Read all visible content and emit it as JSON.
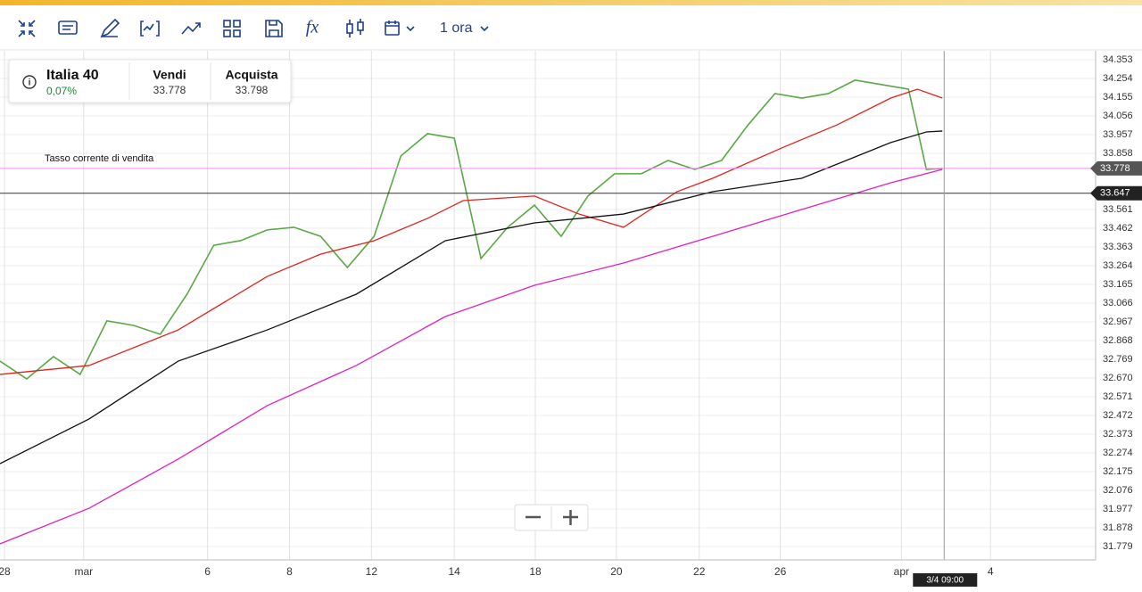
{
  "toolbar": {
    "timeframe": "1 ora"
  },
  "instrument": {
    "name": "Italia 40",
    "change": "0,07%",
    "sell_label": "Vendi",
    "sell": "33.778",
    "buy_label": "Acquista",
    "buy": "33.798"
  },
  "chart_data": {
    "type": "line",
    "xlim": [
      0,
      123
    ],
    "xticks": [
      {
        "value": 0.5,
        "label": "28"
      },
      {
        "value": 9.4,
        "label": "mar"
      },
      {
        "value": 23.3,
        "label": "6"
      },
      {
        "value": 32.5,
        "label": "8"
      },
      {
        "value": 41.7,
        "label": "12"
      },
      {
        "value": 51.0,
        "label": "14"
      },
      {
        "value": 60.1,
        "label": "18"
      },
      {
        "value": 69.2,
        "label": "20"
      },
      {
        "value": 78.5,
        "label": "22"
      },
      {
        "value": 87.6,
        "label": "26"
      },
      {
        "value": 101.2,
        "label": "apr"
      },
      {
        "value": 111.2,
        "label": "4"
      }
    ],
    "ylim": [
      31.708,
      34.4
    ],
    "yticks": [
      34.353,
      34.254,
      34.155,
      34.056,
      33.957,
      33.858,
      33.561,
      33.462,
      33.363,
      33.264,
      33.165,
      33.066,
      32.967,
      32.868,
      32.769,
      {
        "value": 32.67,
        "label": "32.670"
      },
      32.571,
      32.472,
      32.373,
      32.274,
      32.175,
      32.076,
      31.977,
      31.878,
      31.779
    ],
    "grid": true,
    "series": [
      {
        "color": "#5aa845",
        "x": [
          0,
          3,
          6,
          9,
          12,
          15,
          18,
          21,
          24,
          27,
          30,
          33,
          36,
          39,
          42,
          45,
          48,
          51,
          54,
          57,
          60,
          63,
          66,
          69,
          72,
          75,
          78,
          81,
          84,
          87,
          90,
          93,
          96,
          99,
          102,
          104,
          105.8
        ],
        "values": [
          32.759,
          32.665,
          32.783,
          32.689,
          32.972,
          32.948,
          32.901,
          33.113,
          33.372,
          33.396,
          33.453,
          33.467,
          33.419,
          33.254,
          33.419,
          33.844,
          33.962,
          33.938,
          33.302,
          33.467,
          33.584,
          33.419,
          33.632,
          33.75,
          33.75,
          33.82,
          33.773,
          33.82,
          34.009,
          34.174,
          34.15,
          34.174,
          34.245,
          34.221,
          34.197,
          33.773,
          33.778
        ]
      },
      {
        "color": "#e0231c",
        "x": [
          0,
          10,
          20,
          30,
          36,
          42,
          48,
          52,
          60,
          65,
          70,
          76,
          80,
          88,
          94,
          100,
          103,
          105.8
        ],
        "values": [
          32.689,
          32.736,
          32.924,
          33.207,
          33.325,
          33.396,
          33.514,
          33.608,
          33.632,
          33.537,
          33.467,
          33.655,
          33.726,
          33.891,
          34.009,
          34.15,
          34.197,
          34.15
        ]
      },
      {
        "color": "#111111",
        "x": [
          0,
          10,
          20,
          30,
          40,
          50,
          60,
          70,
          80,
          90,
          95,
          100,
          104,
          105.8
        ],
        "values": [
          32.217,
          32.453,
          32.759,
          32.924,
          33.113,
          33.396,
          33.49,
          33.537,
          33.655,
          33.726,
          33.82,
          33.915,
          33.971,
          33.976
        ]
      },
      {
        "color": "#e020c0",
        "x": [
          0,
          10,
          20,
          30,
          40,
          50,
          60,
          70,
          80,
          90,
          100,
          105.8
        ],
        "values": [
          31.793,
          31.981,
          32.241,
          32.524,
          32.736,
          32.995,
          33.16,
          33.278,
          33.419,
          33.561,
          33.702,
          33.773
        ]
      }
    ],
    "sell_line": {
      "value": 33.778,
      "label": "Tasso corrente di vendita",
      "color": "#f08ff0"
    },
    "last_line": {
      "value": 33.647,
      "color": "#333333"
    },
    "cursor": {
      "x": 106,
      "label": "3/4 09:00"
    }
  }
}
